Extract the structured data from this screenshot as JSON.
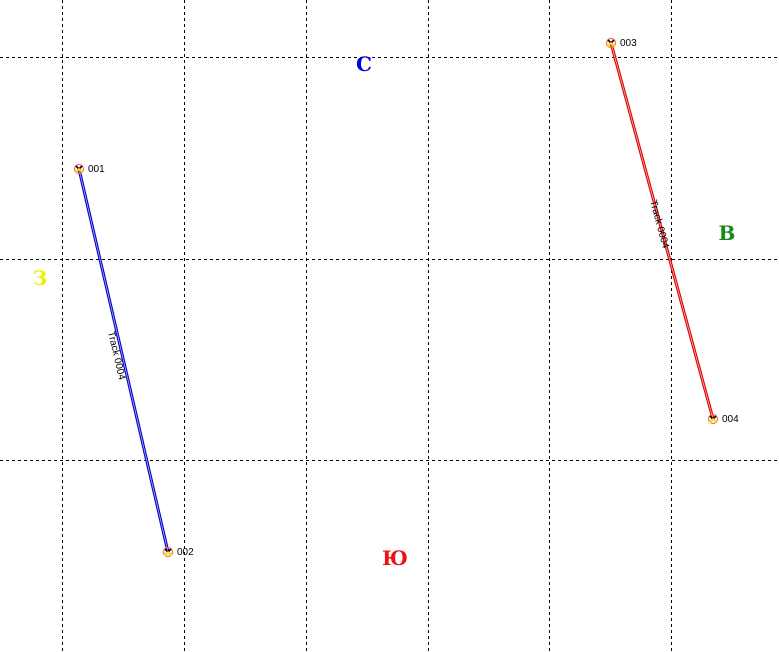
{
  "compass": {
    "north": {
      "label": "С",
      "color": "#0000dd"
    },
    "east": {
      "label": "В",
      "color": "#1a8a1a"
    },
    "south": {
      "label": "Ю",
      "color": "#ee1111"
    },
    "west": {
      "label": "З",
      "color": "#eeee00"
    }
  },
  "grid": {
    "visible": true,
    "style": "dashed",
    "color": "#000000"
  },
  "waypoints": [
    {
      "name": "001"
    },
    {
      "name": "002"
    },
    {
      "name": "003"
    },
    {
      "name": "004"
    }
  ],
  "tracks": [
    {
      "name": "Track 0004",
      "color": "#0000cc",
      "from": "001",
      "to": "002"
    },
    {
      "name": "Track 0004",
      "color": "#dd0000",
      "from": "003",
      "to": "004"
    }
  ],
  "icons": {
    "waypoint": "waypoint-marker-icon"
  }
}
